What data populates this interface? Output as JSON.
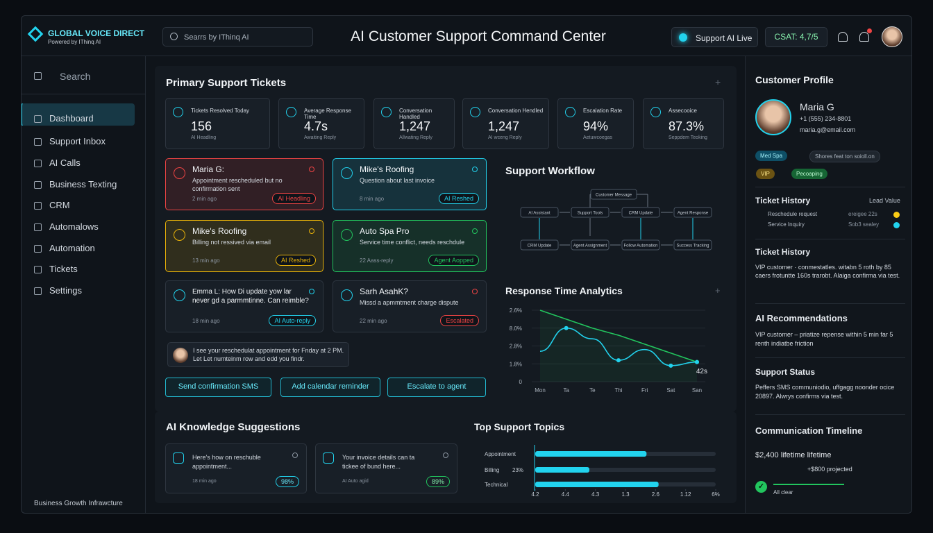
{
  "header": {
    "brand": "GLOBAL VOICE DIRECT",
    "brand_sub": "Powered by IThinq AI",
    "search": "Searrs by IThinq AI",
    "title": "AI Customer Support Command Center",
    "status": "Support AI Live",
    "csat": "CSAT: 4,7/5"
  },
  "sidebar": {
    "search": "Search",
    "nav": [
      "Dashboard",
      "Support Inbox",
      "AI Calls",
      "Business Texting",
      "CRM",
      "Automalows",
      "Automation",
      "Tickets",
      "Settings"
    ],
    "footer": "Business Growth Infrawcture"
  },
  "tickets_panel": {
    "title": "Primary Support Tickets",
    "stats": [
      {
        "label": "Tickets Resolved Today",
        "value": "156",
        "note": "AI Headling"
      },
      {
        "label": "Average Response Time",
        "value": "4.7s",
        "note": "Awaiting Reply"
      },
      {
        "label": "Conversation Handled",
        "value": "1,247",
        "note": "Allwating Reply"
      },
      {
        "label": "Conversation Hendled",
        "value": "1,247",
        "note": "AI wceng Reply"
      },
      {
        "label": "Escalation Rate",
        "value": "94%",
        "note": "Aetuwcoegas"
      },
      {
        "label": "Assecooice",
        "value": "87.3%",
        "note": "Seppdem Teoking"
      }
    ],
    "tickets": [
      {
        "name": "Maria G:",
        "text": "Appointment rescheduled but no confirmation sent",
        "time": "2 min ago",
        "badge": "AI Headling",
        "color": "#ef4444"
      },
      {
        "name": "Mike's Roofing",
        "text": "Question about last invoice",
        "time": "8 min ago",
        "badge": "AI Reshed",
        "color": "#22d3ee"
      },
      {
        "name": "Mike's Roofing",
        "text": "Billing not ressived via email",
        "time": "13 min ago",
        "badge": "AI Reshed",
        "color": "#eab308"
      },
      {
        "name": "Auto Spa Pro",
        "text": "Service time conflict, needs reschdule",
        "time": "22 Aass-reply",
        "badge": "Agent Aopped",
        "color": "#22c55e"
      },
      {
        "name": "Emma L: How Di update yow lar never gd a parmmtinne. Can reimble?",
        "text": "",
        "time": "18 min ago",
        "badge": "AI Auto-reply",
        "color": "#22d3ee"
      },
      {
        "name": "Sarh AsahK?",
        "text": "Missd a apmmtment charge dispute",
        "time": "22 min ago",
        "badge": "Escalated",
        "color": "#ef4444"
      }
    ],
    "chat": "I see your reschedulat appointment for Fnday at 2 PM. Let Let numteinm row and edd you findr.",
    "actions": [
      "Send confirmation SMS",
      "Add calendar reminder",
      "Escalate to agent"
    ]
  },
  "workflow": {
    "title": "Support Workflow",
    "top": "Customer Message",
    "row1": [
      "AI Assistant",
      "Support Tools",
      "CRM Update",
      "Agent Response"
    ],
    "row2": [
      "CRM Update",
      "Agent Assignment",
      "Follow Automation",
      "Success Tracking"
    ]
  },
  "response_chart": {
    "type": "line",
    "title": "Response Time Analytics",
    "categories": [
      "Mon",
      "Ta",
      "Te",
      "Thi",
      "Fri",
      "Sat",
      "San"
    ],
    "series": [
      {
        "color": "#22c55e",
        "values": [
          4.0,
          3.5,
          3.0,
          2.6,
          2.1,
          1.6,
          1.1
        ]
      },
      {
        "color": "#22d3ee",
        "values": [
          1.7,
          3.0,
          2.4,
          1.2,
          1.8,
          0.9,
          1.1
        ]
      }
    ],
    "ylim": [
      0,
      4
    ],
    "yticks": [
      0,
      {
        "value": 1,
        "label": "1.8%"
      },
      {
        "value": 2,
        "label": "2.8%"
      },
      {
        "value": 3,
        "label": "8.0%"
      },
      {
        "value": 4,
        "label": "2.6%"
      }
    ],
    "annotation": "42s"
  },
  "knowledge": {
    "title": "AI Knowledge Suggestions",
    "cards": [
      {
        "text": "Here's how on reschuble appointment...",
        "meta": "18 min ago",
        "score": "98%"
      },
      {
        "text": "Your invoice details can ta tickee of bund here...",
        "meta": "AI Auto agid",
        "score": "89%"
      }
    ]
  },
  "topics_chart": {
    "type": "bar",
    "title": "Top Support Topics",
    "categories": [
      "Appointment",
      "Billing",
      "Technical"
    ],
    "values": [
      3.7,
      1.8,
      4.1
    ],
    "color": "#22d3ee",
    "annotation": "23%",
    "xlim": [
      0,
      6
    ],
    "xticks": [
      {
        "value": 0,
        "label": "4.2"
      },
      {
        "value": 1,
        "label": "4.4"
      },
      {
        "value": 2,
        "label": "4.3"
      },
      {
        "value": 3,
        "label": "1.3"
      },
      {
        "value": 4,
        "label": "2.6"
      },
      {
        "value": 5,
        "label": "1.12"
      },
      {
        "value": 6,
        "label": "6%"
      }
    ]
  },
  "profile": {
    "title": "Customer Profile",
    "name": "Maria G",
    "phone": "+1 (555) 234-8801",
    "email": "maria.g@email.com",
    "tags": [
      "Med Spa",
      "Shores feat ton soioll.on",
      "VIP",
      "Pecoaping"
    ],
    "history_title": "Ticket History",
    "lead_value": "Lead Value",
    "history": [
      [
        "Reschedule request",
        "ereigee 22s"
      ],
      [
        "Service Inquiry",
        "Sob3 sealey"
      ]
    ],
    "notes_title": "Ticket History",
    "notes": "VIP customer · conmestatles. witabn 5 roth by 85 caers frotuntte 160s trarobt. Alaiga confirma via test.",
    "rec_title": "AI Recommendations",
    "rec": "VIP customer – priatize repense within 5 min far 5 renth indiatbe friction",
    "status_title": "Support Status",
    "status": "Peffers SMS communiodio, uffgagg noonder ocice 20897. Alwrys confirms via test.",
    "timeline_title": "Communication Timeline",
    "lifetime": "$2,400 lifetime lifetime",
    "projected": "+$800 projected",
    "clear": "All clear"
  }
}
